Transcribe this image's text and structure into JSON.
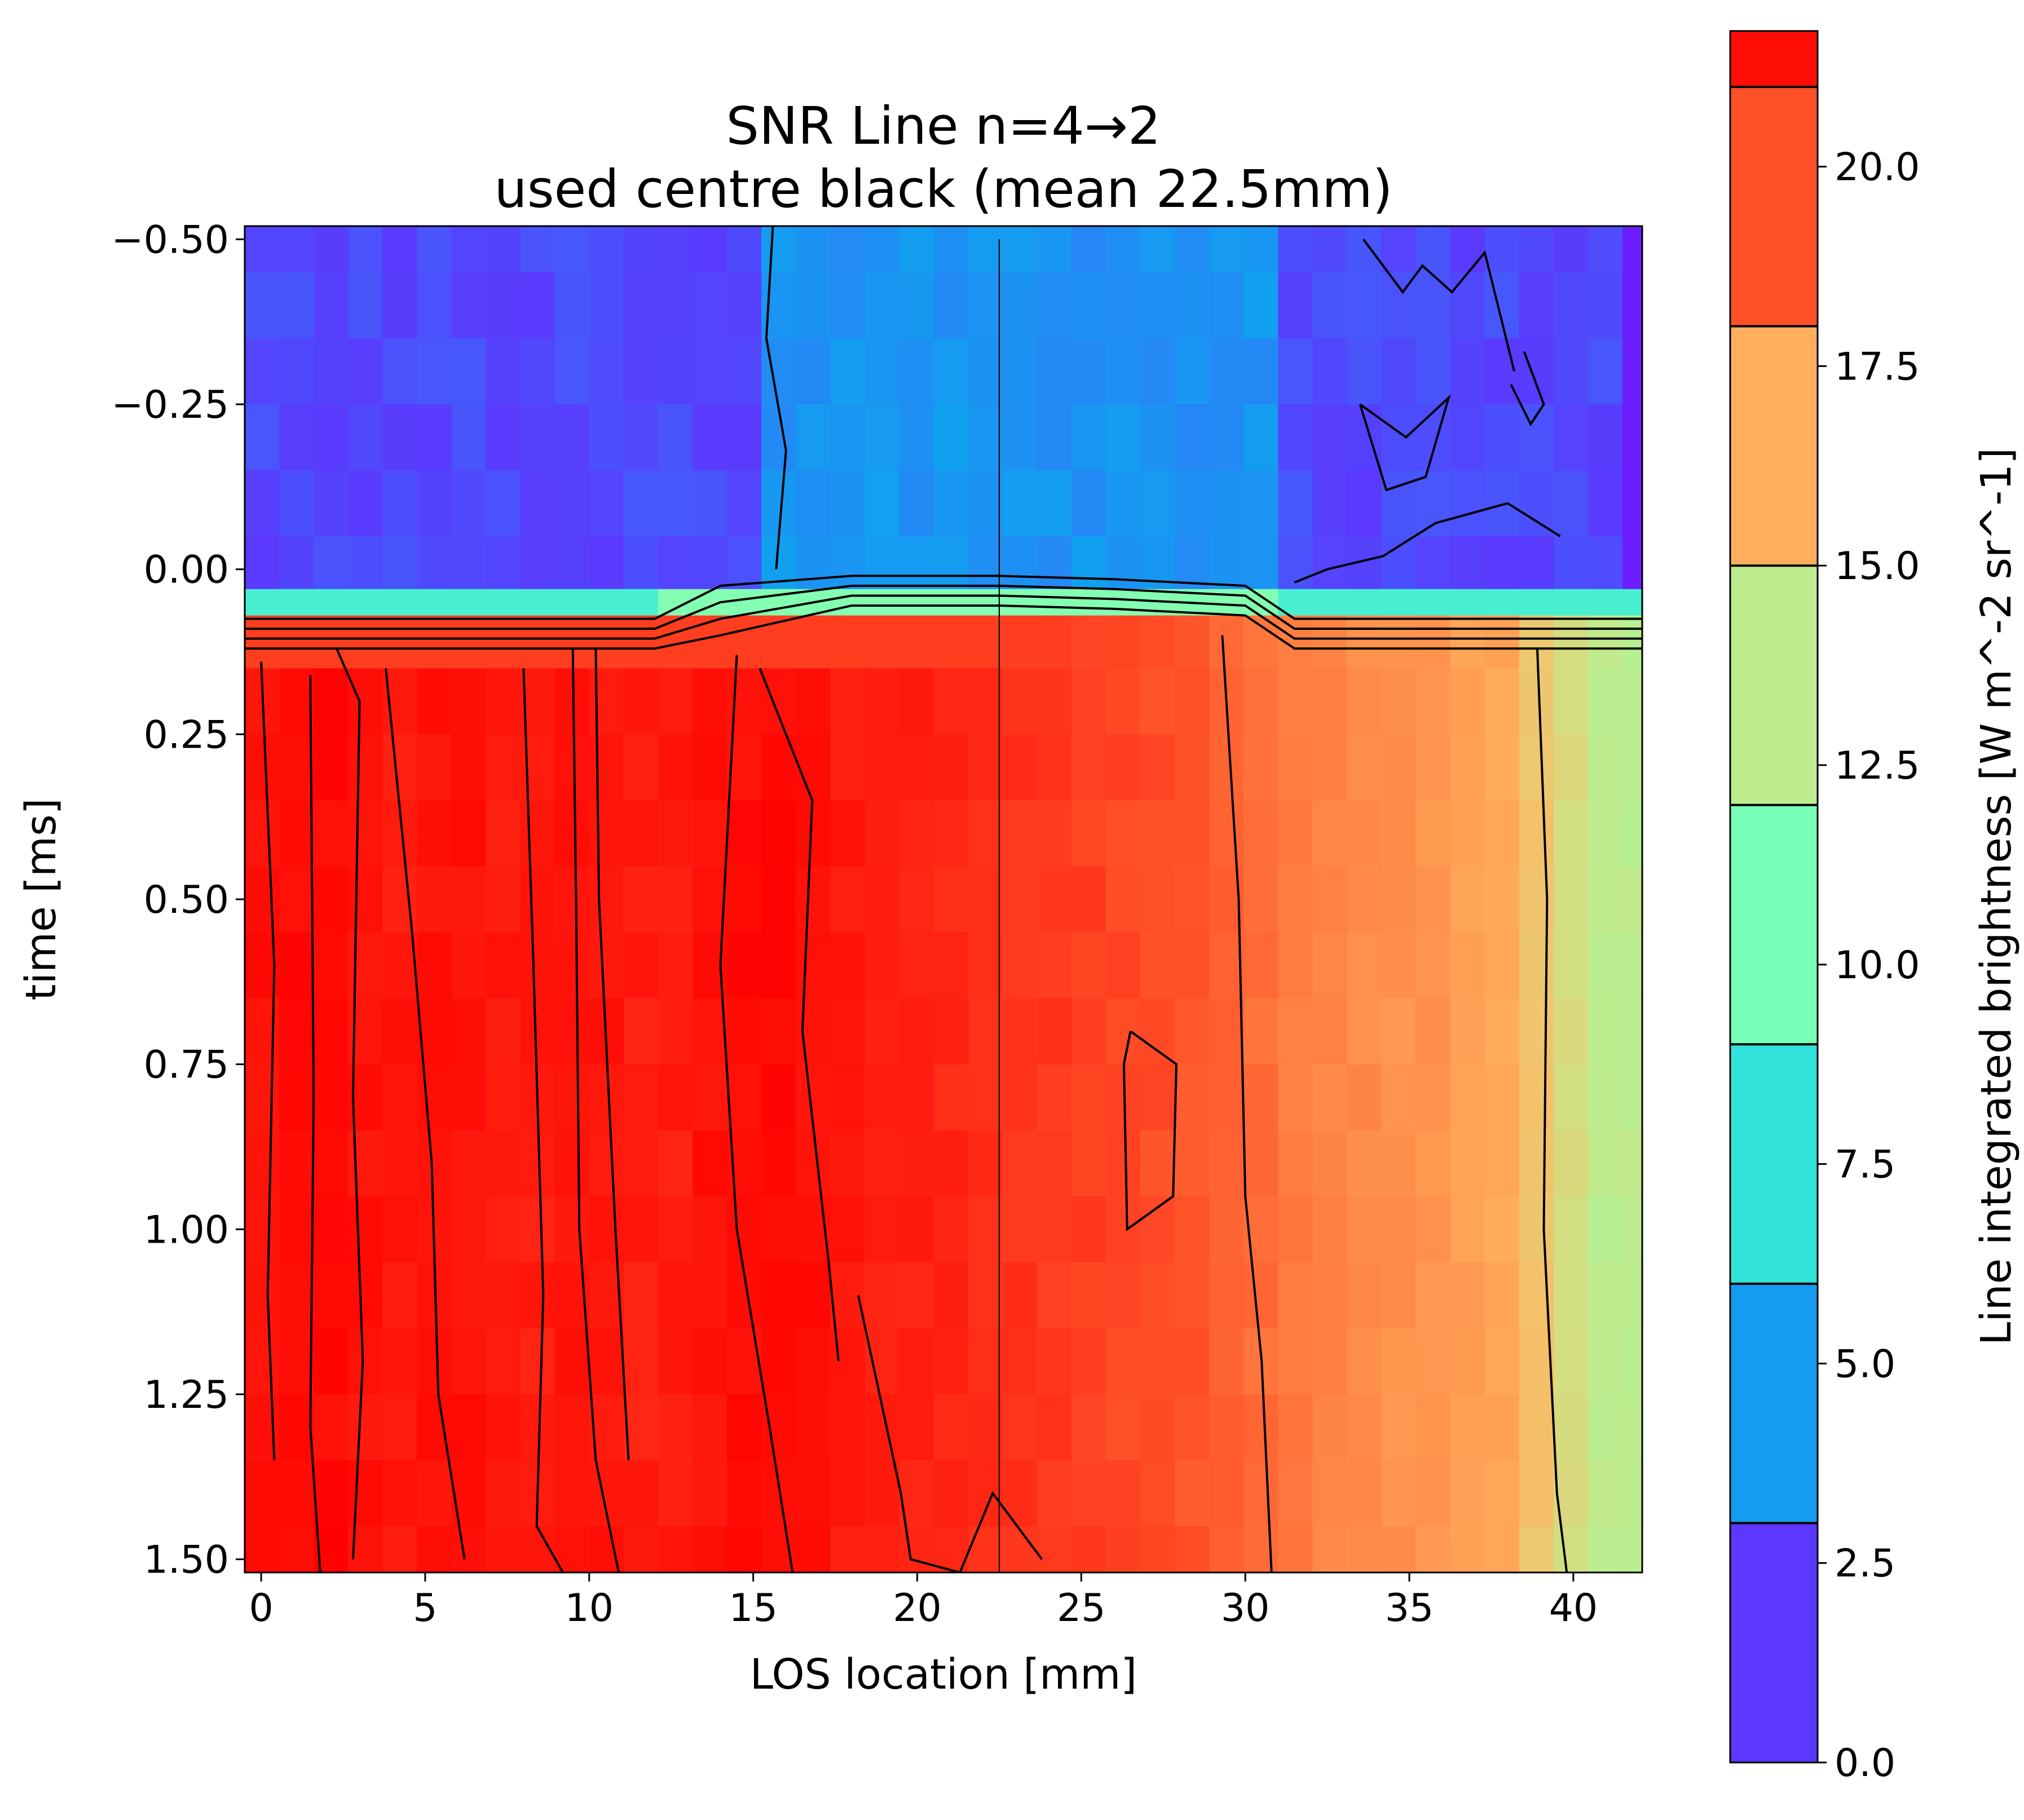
{
  "chart_data": {
    "type": "heatmap",
    "title_line1": "SNR Line n=4→2",
    "title_line2": "used centre black (mean 22.5mm)",
    "xlabel": "LOS location [mm]",
    "ylabel": "time [ms]",
    "x_ticks": [
      "0",
      "5",
      "10",
      "15",
      "20",
      "25",
      "30",
      "35",
      "40"
    ],
    "y_ticks": [
      "−0.50",
      "−0.25",
      "0.00",
      "0.25",
      "0.50",
      "0.75",
      "1.00",
      "1.25",
      "1.50"
    ],
    "xlim": [
      -0.5,
      42.1
    ],
    "ylim": [
      1.52,
      -0.52
    ],
    "colormap": "rainbow",
    "colorbar": {
      "label": "Line integrated brightness [W m^-2 sr^-1]",
      "ticks": [
        "0.0",
        "2.5",
        "5.0",
        "7.5",
        "10.0",
        "12.5",
        "15.0",
        "17.5",
        "20.0"
      ],
      "range": [
        0,
        21.7
      ],
      "contour_levels": [
        3.0,
        6.0,
        9.0,
        12.0,
        15.0,
        18.0,
        21.0
      ]
    },
    "centre_line_mm": 22.5,
    "transition_time_ms": 0.07,
    "pre_transition": {
      "base_value": 2.0,
      "bright_region_mm": [
        15.5,
        30.8
      ],
      "bright_value": 4.3
    },
    "post_transition_profile": {
      "x_mm": [
        0,
        2,
        4,
        6,
        8,
        10,
        12,
        14,
        16,
        18,
        20,
        22,
        24,
        26,
        28,
        30,
        32,
        34,
        36,
        38,
        39.5,
        41
      ],
      "brightness": [
        21.3,
        21.5,
        21.0,
        21.3,
        20.9,
        21.3,
        20.8,
        21.3,
        21.5,
        21.0,
        20.8,
        20.5,
        20.2,
        19.8,
        19.5,
        18.8,
        18.0,
        17.6,
        17.3,
        16.7,
        15.0,
        13.4
      ]
    }
  }
}
